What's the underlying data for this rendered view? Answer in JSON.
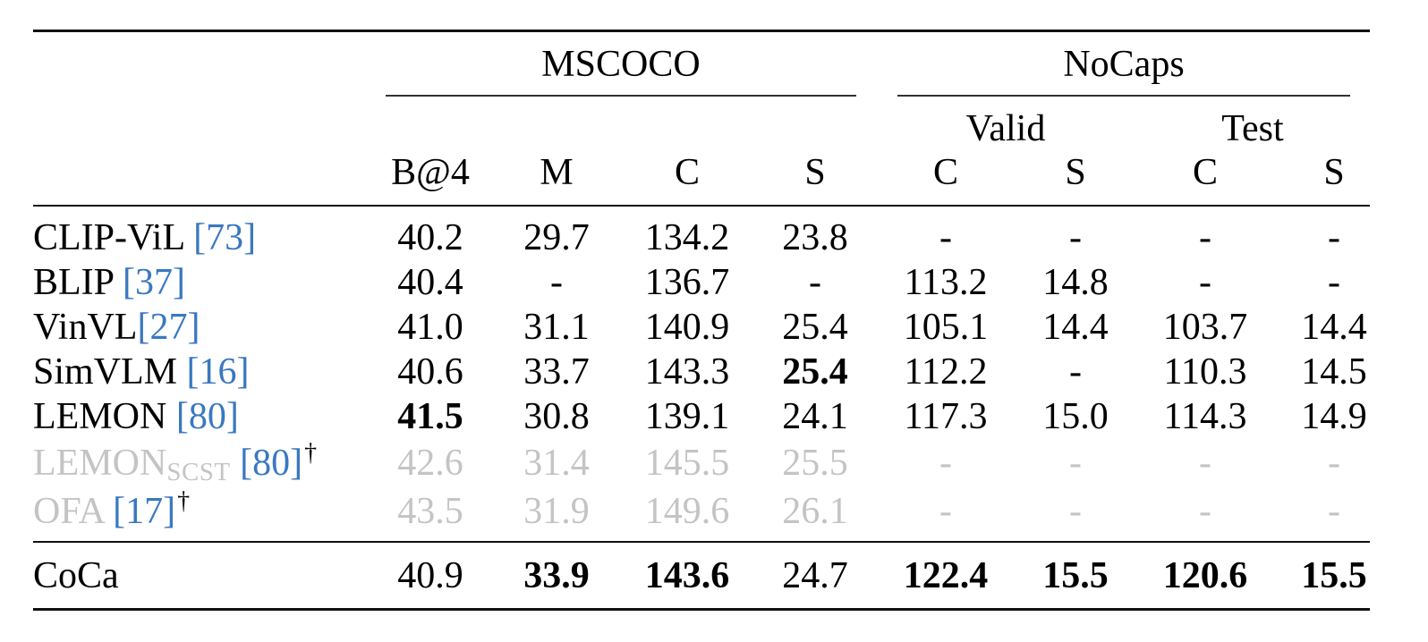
{
  "header": {
    "groups": {
      "mscoco": "MSCOCO",
      "nocaps": "NoCaps"
    },
    "subgroups": {
      "valid": "Valid",
      "test": "Test"
    },
    "columns": [
      "B@4",
      "M",
      "C",
      "S",
      "C",
      "S",
      "C",
      "S"
    ]
  },
  "rows": [
    {
      "name": "CLIP-ViL ",
      "sub": "",
      "cite": "[73]",
      "dagger": "",
      "grey": false,
      "cells": [
        {
          "v": "40.2"
        },
        {
          "v": "29.7"
        },
        {
          "v": "134.2"
        },
        {
          "v": "23.8"
        },
        {
          "v": "-"
        },
        {
          "v": "-"
        },
        {
          "v": "-"
        },
        {
          "v": "-"
        }
      ]
    },
    {
      "name": "BLIP ",
      "sub": "",
      "cite": "[37]",
      "dagger": "",
      "grey": false,
      "cells": [
        {
          "v": "40.4"
        },
        {
          "v": "-"
        },
        {
          "v": "136.7"
        },
        {
          "v": "-"
        },
        {
          "v": "113.2"
        },
        {
          "v": "14.8"
        },
        {
          "v": "-"
        },
        {
          "v": "-"
        }
      ]
    },
    {
      "name": "VinVL",
      "sub": "",
      "cite": "[27]",
      "dagger": "",
      "grey": false,
      "cells": [
        {
          "v": "41.0"
        },
        {
          "v": "31.1"
        },
        {
          "v": "140.9"
        },
        {
          "v": "25.4"
        },
        {
          "v": "105.1"
        },
        {
          "v": "14.4"
        },
        {
          "v": "103.7"
        },
        {
          "v": "14.4"
        }
      ]
    },
    {
      "name": "SimVLM ",
      "sub": "",
      "cite": "[16]",
      "dagger": "",
      "grey": false,
      "cells": [
        {
          "v": "40.6"
        },
        {
          "v": "33.7"
        },
        {
          "v": "143.3"
        },
        {
          "v": "25.4",
          "bold": true
        },
        {
          "v": "112.2"
        },
        {
          "v": "-"
        },
        {
          "v": "110.3"
        },
        {
          "v": "14.5"
        }
      ]
    },
    {
      "name": "LEMON ",
      "sub": "",
      "cite": "[80]",
      "dagger": "",
      "grey": false,
      "cells": [
        {
          "v": "41.5",
          "bold": true
        },
        {
          "v": "30.8"
        },
        {
          "v": "139.1"
        },
        {
          "v": "24.1"
        },
        {
          "v": "117.3"
        },
        {
          "v": "15.0"
        },
        {
          "v": "114.3"
        },
        {
          "v": "14.9"
        }
      ]
    },
    {
      "name": "LEMON",
      "sub": "SCST",
      "cite": "[80]",
      "dagger": "†",
      "grey": true,
      "cells": [
        {
          "v": "42.6"
        },
        {
          "v": "31.4"
        },
        {
          "v": "145.5"
        },
        {
          "v": "25.5"
        },
        {
          "v": "-"
        },
        {
          "v": "-"
        },
        {
          "v": "-"
        },
        {
          "v": "-"
        }
      ]
    },
    {
      "name": "OFA ",
      "sub": "",
      "cite": "[17]",
      "dagger": "†",
      "grey": true,
      "cells": [
        {
          "v": "43.5"
        },
        {
          "v": "31.9"
        },
        {
          "v": "149.6"
        },
        {
          "v": "26.1"
        },
        {
          "v": "-"
        },
        {
          "v": "-"
        },
        {
          "v": "-"
        },
        {
          "v": "-"
        }
      ]
    },
    {
      "name": "CoCa",
      "sub": "",
      "cite": "",
      "dagger": "",
      "grey": false,
      "cells": [
        {
          "v": "40.9"
        },
        {
          "v": "33.9",
          "bold": true
        },
        {
          "v": "143.6",
          "bold": true
        },
        {
          "v": "24.7"
        },
        {
          "v": "122.4",
          "bold": true
        },
        {
          "v": "15.5",
          "bold": true
        },
        {
          "v": "120.6",
          "bold": true
        },
        {
          "v": "15.5",
          "bold": true
        }
      ]
    }
  ]
}
